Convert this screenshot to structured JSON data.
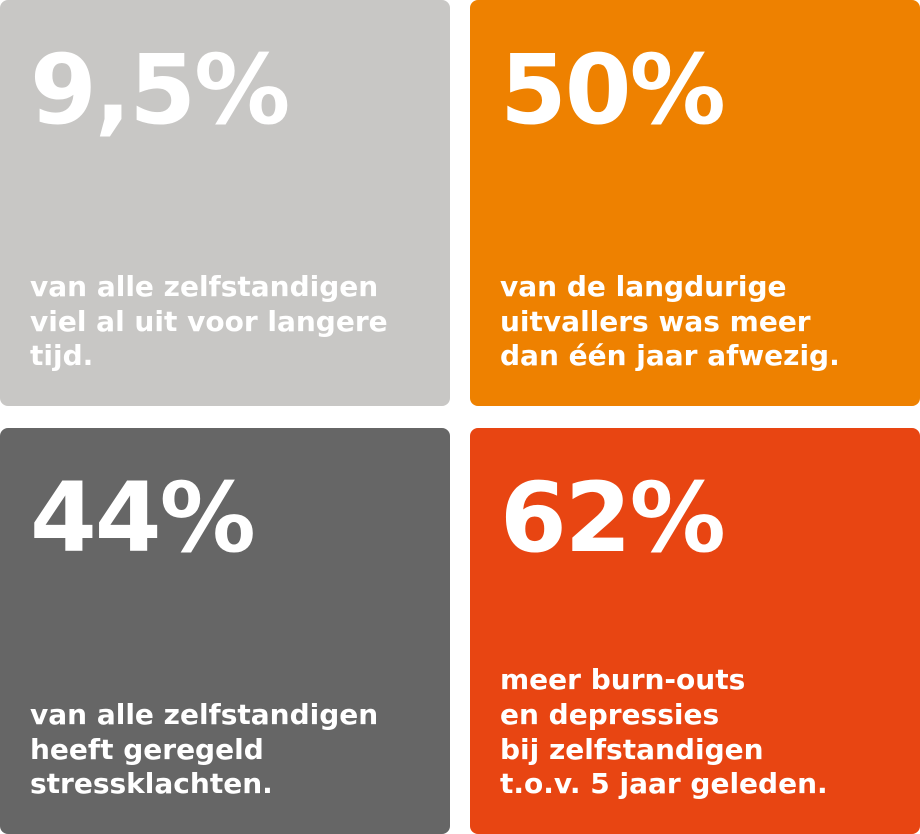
{
  "tiles": [
    {
      "value": "9,5%",
      "description": "van alle zelfstandigen\nviel al uit voor langere\ntijd.",
      "color": "#c8c7c5"
    },
    {
      "value": "50%",
      "description": "van de langdurige\nuitvallers was meer\ndan één jaar afwezig.",
      "color": "#ee8100"
    },
    {
      "value": "44%",
      "description": "van alle zelfstandigen\nheeft geregeld\nstressklachten.",
      "color": "#666666"
    },
    {
      "value": "62%",
      "description": "meer burn-outs\nen depressies\nbij zelfstandigen\nt.o.v. 5 jaar geleden.",
      "color": "#e84512"
    }
  ]
}
